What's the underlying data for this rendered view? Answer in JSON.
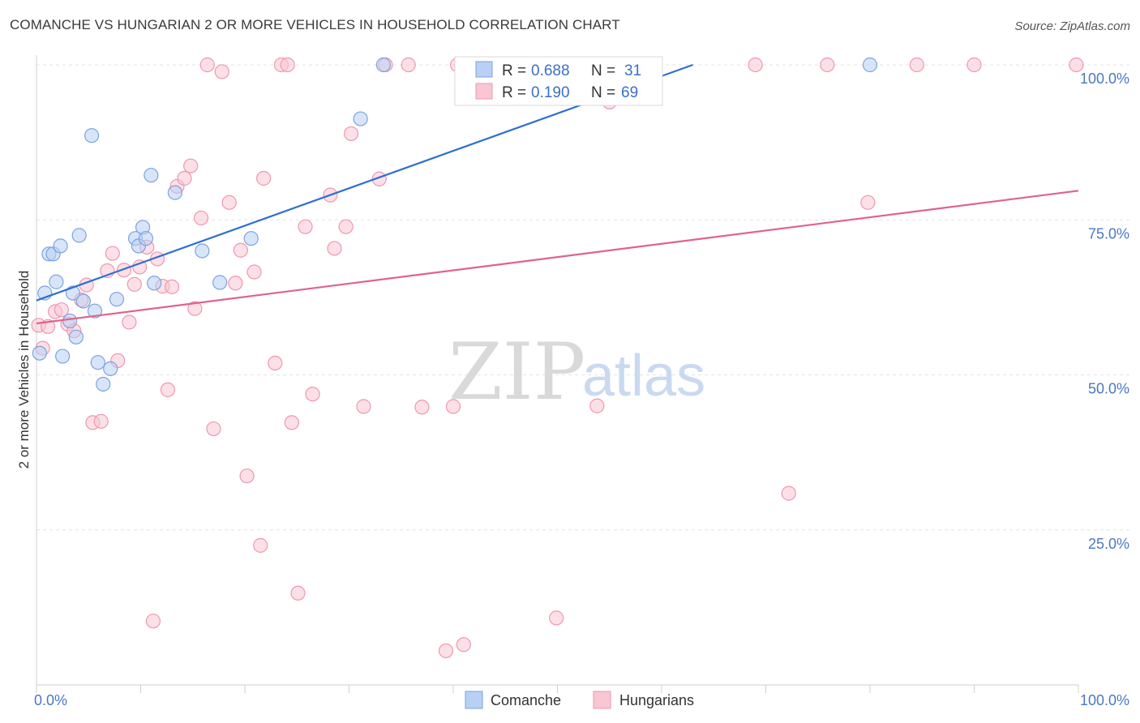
{
  "header": {
    "title": "COMANCHE VS HUNGARIAN 2 OR MORE VEHICLES IN HOUSEHOLD CORRELATION CHART",
    "source": "Source: ZipAtlas.com"
  },
  "watermark": {
    "zip": "ZIP",
    "atlas": "atlas"
  },
  "colors": {
    "comanche_fill": "#b8d0f4",
    "comanche_stroke": "#7aa3e0",
    "comanche_line": "#2f6fd0",
    "hungarian_fill": "#f9c6d3",
    "hungarian_stroke": "#ee97b0",
    "hungarian_line": "#e0628c",
    "tick_label": "#4a78c2",
    "grid": "#e3e3e3"
  },
  "legend": {
    "r_label": "R =",
    "n_label": "N =",
    "rows": [
      {
        "r": "0.688",
        "n": "31"
      },
      {
        "r": "0.190",
        "n": "69"
      }
    ]
  },
  "chart_data": {
    "type": "scatter",
    "title": "COMANCHE VS HUNGARIAN 2 OR MORE VEHICLES IN HOUSEHOLD CORRELATION CHART",
    "ylabel": "2 or more Vehicles in Household",
    "xlabel": "",
    "xlim": [
      0,
      100
    ],
    "ylim": [
      0,
      100
    ],
    "x_tick_labels": [
      "0.0%",
      "100.0%"
    ],
    "y_tick_labels": [
      "25.0%",
      "50.0%",
      "75.0%",
      "100.0%"
    ],
    "y_tick_values": [
      25,
      50,
      75,
      100
    ],
    "legend_placement": "top-center",
    "grid": true,
    "series": [
      {
        "name": "Comanche",
        "r": 0.688,
        "n": 31,
        "trend": {
          "x0": 0,
          "y0": 62.0,
          "x1": 63,
          "y1": 100
        },
        "points": [
          [
            0.3,
            53.5
          ],
          [
            0.8,
            63.2
          ],
          [
            1.2,
            69.5
          ],
          [
            1.6,
            69.5
          ],
          [
            1.9,
            65.0
          ],
          [
            2.3,
            70.8
          ],
          [
            2.5,
            53.0
          ],
          [
            3.2,
            58.7
          ],
          [
            3.5,
            63.2
          ],
          [
            3.8,
            56.1
          ],
          [
            4.1,
            72.5
          ],
          [
            4.5,
            61.9
          ],
          [
            5.3,
            88.6
          ],
          [
            5.6,
            60.3
          ],
          [
            5.9,
            52.0
          ],
          [
            6.4,
            48.5
          ],
          [
            7.1,
            51.0
          ],
          [
            7.7,
            62.2
          ],
          [
            9.5,
            72.0
          ],
          [
            9.8,
            70.8
          ],
          [
            10.2,
            73.8
          ],
          [
            10.5,
            72.0
          ],
          [
            11.0,
            82.2
          ],
          [
            11.3,
            64.8
          ],
          [
            13.3,
            79.4
          ],
          [
            15.9,
            70.0
          ],
          [
            17.6,
            64.9
          ],
          [
            20.6,
            72.0
          ],
          [
            31.1,
            91.3
          ],
          [
            33.3,
            100.0
          ],
          [
            80.0,
            100.0
          ]
        ]
      },
      {
        "name": "Hungarians",
        "r": 0.19,
        "n": 69,
        "trend": {
          "x0": 0,
          "y0": 58.3,
          "x1": 100,
          "y1": 79.7
        },
        "points": [
          [
            0.2,
            58.0
          ],
          [
            0.6,
            54.3
          ],
          [
            1.1,
            57.8
          ],
          [
            1.8,
            60.2
          ],
          [
            2.4,
            60.5
          ],
          [
            3.0,
            58.2
          ],
          [
            3.6,
            57.1
          ],
          [
            4.3,
            62.1
          ],
          [
            4.8,
            64.5
          ],
          [
            5.4,
            42.3
          ],
          [
            6.2,
            42.5
          ],
          [
            6.8,
            66.8
          ],
          [
            7.3,
            69.6
          ],
          [
            7.8,
            52.3
          ],
          [
            8.4,
            66.9
          ],
          [
            8.9,
            58.5
          ],
          [
            9.4,
            64.6
          ],
          [
            9.9,
            67.4
          ],
          [
            10.6,
            70.6
          ],
          [
            11.2,
            10.3
          ],
          [
            11.6,
            68.7
          ],
          [
            12.1,
            64.3
          ],
          [
            12.6,
            47.6
          ],
          [
            13.0,
            64.2
          ],
          [
            13.5,
            80.4
          ],
          [
            14.2,
            81.7
          ],
          [
            14.8,
            83.7
          ],
          [
            15.2,
            60.7
          ],
          [
            15.8,
            75.3
          ],
          [
            16.4,
            100.0
          ],
          [
            17.0,
            41.3
          ],
          [
            17.8,
            98.9
          ],
          [
            18.5,
            77.8
          ],
          [
            19.1,
            64.8
          ],
          [
            19.6,
            70.1
          ],
          [
            20.2,
            33.7
          ],
          [
            20.9,
            66.6
          ],
          [
            21.5,
            22.5
          ],
          [
            21.8,
            81.7
          ],
          [
            22.9,
            51.9
          ],
          [
            23.5,
            100.0
          ],
          [
            24.1,
            100.0
          ],
          [
            24.5,
            42.3
          ],
          [
            25.1,
            14.8
          ],
          [
            25.8,
            73.9
          ],
          [
            26.5,
            46.9
          ],
          [
            28.2,
            79.0
          ],
          [
            28.6,
            70.4
          ],
          [
            29.7,
            73.9
          ],
          [
            30.2,
            88.9
          ],
          [
            31.4,
            44.9
          ],
          [
            32.9,
            81.6
          ],
          [
            33.5,
            100.0
          ],
          [
            35.7,
            100.0
          ],
          [
            37.0,
            44.8
          ],
          [
            39.3,
            5.5
          ],
          [
            40.0,
            44.9
          ],
          [
            41.0,
            6.5
          ],
          [
            40.4,
            100.0
          ],
          [
            49.9,
            10.8
          ],
          [
            53.8,
            45.0
          ],
          [
            55.0,
            94.0
          ],
          [
            69.0,
            100.0
          ],
          [
            72.2,
            30.9
          ],
          [
            75.9,
            100.0
          ],
          [
            79.8,
            77.8
          ],
          [
            84.5,
            100.0
          ],
          [
            90.0,
            100.0
          ],
          [
            99.8,
            100.0
          ]
        ]
      }
    ]
  },
  "bottom_legend": [
    {
      "label": "Comanche"
    },
    {
      "label": "Hungarians"
    }
  ]
}
